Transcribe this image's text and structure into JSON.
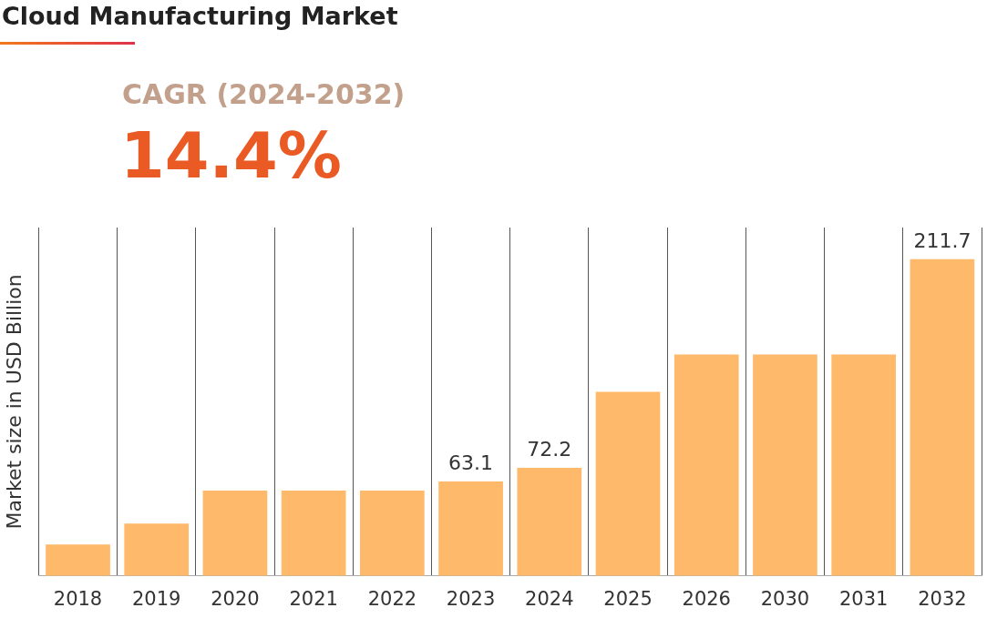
{
  "chart_data": {
    "type": "bar",
    "title": "Cloud Manufacturing Market",
    "subtitle": "CAGR (2024-2032)",
    "annotations": [
      "14.4%"
    ],
    "ylabel": "Market size in USD Billion",
    "categories": [
      "2018",
      "2019",
      "2020",
      "2021",
      "2022",
      "2023",
      "2024",
      "2025",
      "2026",
      "2030",
      "2031",
      "2032"
    ],
    "values": [
      21,
      35,
      57,
      57,
      57,
      63.1,
      72.2,
      123,
      148,
      148,
      148,
      211.7
    ],
    "value_labels": [
      null,
      null,
      null,
      null,
      null,
      "63.1",
      "72.2",
      null,
      null,
      null,
      null,
      "211.7"
    ],
    "color": "#ffb96a",
    "grid": "x",
    "legend": false
  }
}
